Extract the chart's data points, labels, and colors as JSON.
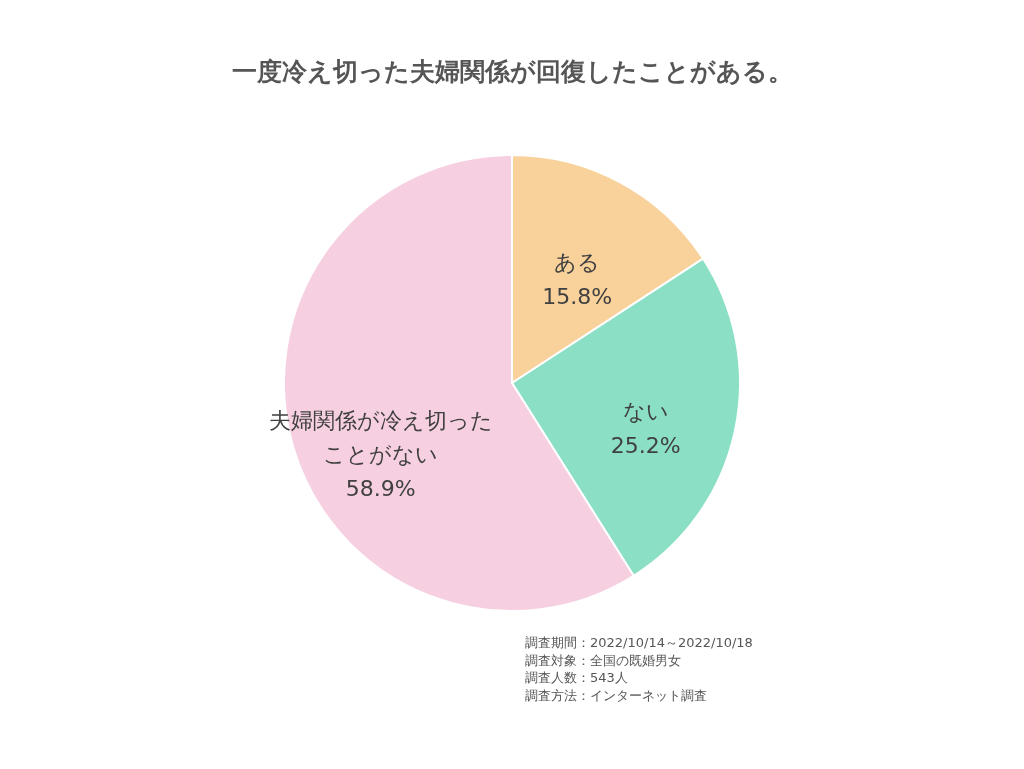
{
  "chart_data": {
    "type": "pie",
    "title": "一度冷え切った夫婦関係が回復したことがある。",
    "categories": [
      "ある",
      "ない",
      "夫婦関係が冷え切ったことがない"
    ],
    "values": [
      15.8,
      25.2,
      58.9
    ],
    "value_labels": [
      "15.8%",
      "25.2%",
      "58.9%"
    ],
    "colors": [
      "#f9d29b",
      "#8adfc4",
      "#f6cfe0"
    ],
    "annotations": [
      "調査期間：2022/10/14～2022/10/18",
      "調査対象：全国の既婚男女",
      "調査人数：543人",
      "調査方法：インターネット調査"
    ]
  }
}
